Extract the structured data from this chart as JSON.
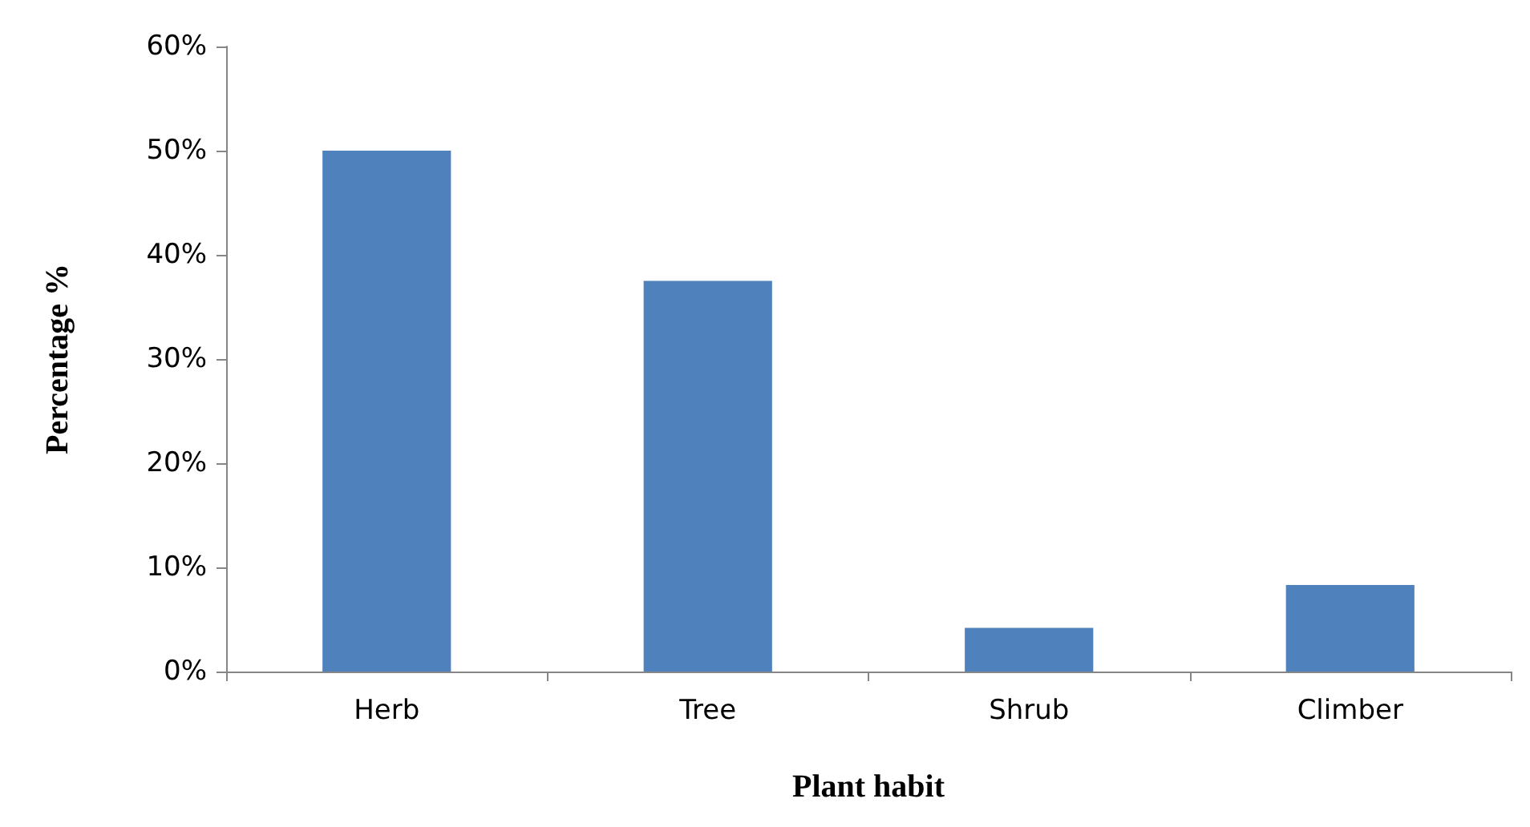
{
  "chart_data": {
    "type": "bar",
    "xlabel": "Plant habit",
    "ylabel": "Percentage %",
    "categories": [
      "Herb",
      "Tree",
      "Shrub",
      "Climber"
    ],
    "values": [
      50,
      37.5,
      4.2,
      8.3
    ],
    "color": "#4f81bd",
    "ylim": [
      0,
      60
    ],
    "yticks": [
      {
        "value": 0,
        "label": "0%"
      },
      {
        "value": 10,
        "label": "10%"
      },
      {
        "value": 20,
        "label": "20%"
      },
      {
        "value": 30,
        "label": "30%"
      },
      {
        "value": 40,
        "label": "40%"
      },
      {
        "value": 50,
        "label": "50%"
      },
      {
        "value": 60,
        "label": "60%"
      }
    ],
    "grid": false
  }
}
